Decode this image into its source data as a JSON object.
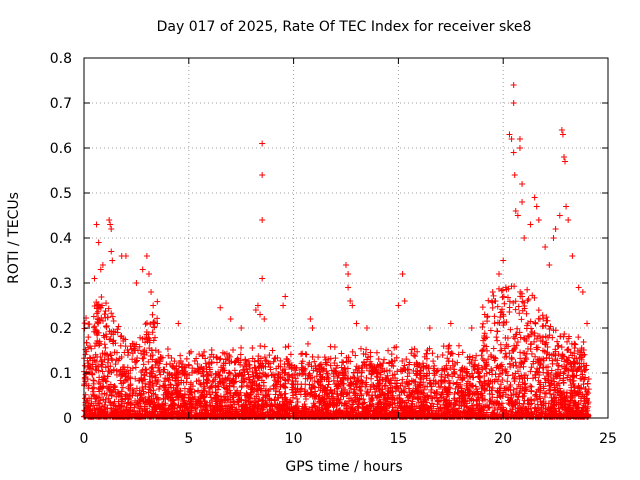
{
  "chart_data": {
    "type": "scatter",
    "title": "Day 017 of 2025, Rate Of TEC Index for receiver ske8",
    "xlabel": "GPS time / hours",
    "ylabel": "ROTI / TECUs",
    "xlim": [
      0,
      25
    ],
    "ylim": [
      0,
      0.8
    ],
    "x_ticks": [
      0,
      5,
      10,
      15,
      20,
      25
    ],
    "y_ticks": [
      0,
      0.1,
      0.2,
      0.3,
      0.4,
      0.5,
      0.6,
      0.7,
      0.8
    ],
    "x_tick_labels": [
      "0",
      "5",
      "10",
      "15",
      "20",
      "25"
    ],
    "y_tick_labels": [
      "0",
      "0.1",
      "0.2",
      "0.3",
      "0.4",
      "0.5",
      "0.6",
      "0.7",
      "0.8"
    ],
    "grid": true,
    "marker": "plus",
    "color": "#ff0000",
    "series": [
      {
        "name": "ROTI",
        "points": [
          [
            0.6,
            0.43
          ],
          [
            0.7,
            0.39
          ],
          [
            0.8,
            0.33
          ],
          [
            0.9,
            0.34
          ],
          [
            0.5,
            0.31
          ],
          [
            1.2,
            0.44
          ],
          [
            1.25,
            0.43
          ],
          [
            1.3,
            0.42
          ],
          [
            1.3,
            0.37
          ],
          [
            1.35,
            0.35
          ],
          [
            1.8,
            0.36
          ],
          [
            2.0,
            0.36
          ],
          [
            2.5,
            0.3
          ],
          [
            2.8,
            0.33
          ],
          [
            3.0,
            0.36
          ],
          [
            3.1,
            0.32
          ],
          [
            3.2,
            0.28
          ],
          [
            3.3,
            0.25
          ],
          [
            4.5,
            0.21
          ],
          [
            6.5,
            0.245
          ],
          [
            7.0,
            0.22
          ],
          [
            7.5,
            0.2
          ],
          [
            8.2,
            0.24
          ],
          [
            8.3,
            0.25
          ],
          [
            8.4,
            0.23
          ],
          [
            8.5,
            0.61
          ],
          [
            8.5,
            0.54
          ],
          [
            8.5,
            0.44
          ],
          [
            8.5,
            0.31
          ],
          [
            8.6,
            0.22
          ],
          [
            9.5,
            0.25
          ],
          [
            9.6,
            0.27
          ],
          [
            10.8,
            0.22
          ],
          [
            10.9,
            0.2
          ],
          [
            12.5,
            0.34
          ],
          [
            12.6,
            0.32
          ],
          [
            12.6,
            0.29
          ],
          [
            12.7,
            0.26
          ],
          [
            12.8,
            0.25
          ],
          [
            13.0,
            0.21
          ],
          [
            13.5,
            0.2
          ],
          [
            15.0,
            0.25
          ],
          [
            15.2,
            0.32
          ],
          [
            15.3,
            0.26
          ],
          [
            16.5,
            0.2
          ],
          [
            17.5,
            0.21
          ],
          [
            18.5,
            0.2
          ],
          [
            19.5,
            0.28
          ],
          [
            19.8,
            0.32
          ],
          [
            20.0,
            0.35
          ],
          [
            20.3,
            0.63
          ],
          [
            20.4,
            0.62
          ],
          [
            20.5,
            0.74
          ],
          [
            20.5,
            0.7
          ],
          [
            20.5,
            0.59
          ],
          [
            20.55,
            0.54
          ],
          [
            20.6,
            0.46
          ],
          [
            20.7,
            0.45
          ],
          [
            20.8,
            0.62
          ],
          [
            20.8,
            0.6
          ],
          [
            20.9,
            0.52
          ],
          [
            20.9,
            0.48
          ],
          [
            21.0,
            0.4
          ],
          [
            21.3,
            0.43
          ],
          [
            21.5,
            0.49
          ],
          [
            21.6,
            0.47
          ],
          [
            21.7,
            0.44
          ],
          [
            22.0,
            0.38
          ],
          [
            22.2,
            0.34
          ],
          [
            22.4,
            0.4
          ],
          [
            22.5,
            0.42
          ],
          [
            22.7,
            0.45
          ],
          [
            22.8,
            0.64
          ],
          [
            22.85,
            0.63
          ],
          [
            22.9,
            0.58
          ],
          [
            22.95,
            0.57
          ],
          [
            23.0,
            0.47
          ],
          [
            23.1,
            0.44
          ],
          [
            23.3,
            0.36
          ],
          [
            23.6,
            0.29
          ],
          [
            23.8,
            0.28
          ],
          [
            24.0,
            0.21
          ]
        ]
      }
    ],
    "note": "Dense band of thousands of ROTI samples between 0 and ~0.25 TECUs spanning 0-24 h; elevated activity near 0-3 h and 20-24 h."
  }
}
